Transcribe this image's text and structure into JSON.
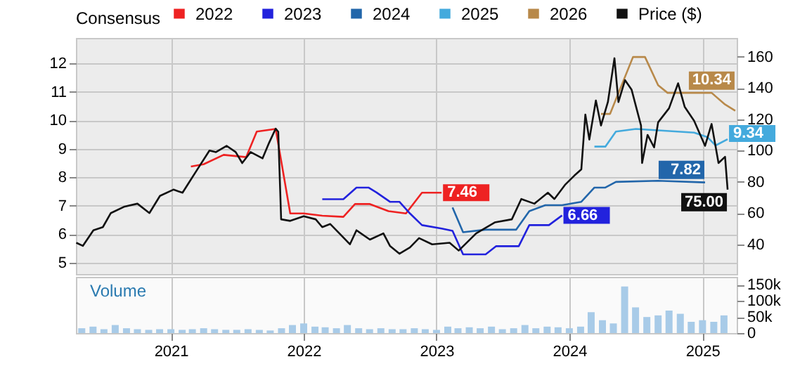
{
  "chart_data": [
    {
      "type": "line",
      "legend_title": "Consensus",
      "legend": "top right",
      "grid": true,
      "tick_labels": "y",
      "xlim": [
        "2020-04-15",
        "2025-04-05"
      ],
      "xticks": [
        "2021",
        "2022",
        "2023",
        "2024",
        "2025"
      ],
      "ylim": [
        4.6,
        12.9
      ],
      "yticks": [
        5,
        6,
        7,
        8,
        9,
        10,
        11,
        12
      ],
      "y2lim": [
        21,
        172
      ],
      "y2ticks": [
        40,
        60,
        80,
        100,
        120,
        140,
        160
      ],
      "series": [
        {
          "name": "2022",
          "color": "#ee2222",
          "x": [
            "2021-02-25",
            "2021-04-01",
            "2021-05-26",
            "2021-07-27",
            "2021-08-25",
            "2021-10-16",
            "2021-11-25",
            "2022-01-01",
            "2022-02-21",
            "2022-04-20",
            "2022-05-22",
            "2022-07-02",
            "2022-08-22",
            "2022-10-09",
            "2022-11-22",
            "2023-01-15"
          ],
          "values": [
            8.38,
            8.46,
            8.79,
            8.71,
            9.61,
            9.7,
            6.73,
            6.73,
            6.65,
            6.61,
            7.06,
            7.06,
            6.81,
            6.73,
            7.46,
            7.46
          ],
          "value_labels": [
            null,
            null,
            null,
            null,
            null,
            null,
            null,
            null,
            null,
            null,
            null,
            null,
            null,
            null,
            null,
            "7.46"
          ]
        },
        {
          "name": "2023",
          "color": "#2222dd",
          "x": [
            "2022-02-21",
            "2022-04-20",
            "2022-05-26",
            "2022-06-28",
            "2022-07-20",
            "2022-08-26",
            "2022-09-21",
            "2022-10-20",
            "2022-11-22",
            "2023-01-15",
            "2023-02-14",
            "2023-03-15",
            "2023-05-16",
            "2023-06-14",
            "2023-08-15",
            "2023-09-13",
            "2023-11-06",
            "2023-12-12"
          ],
          "values": [
            7.23,
            7.23,
            7.64,
            7.64,
            7.47,
            7.14,
            7.14,
            6.73,
            6.32,
            6.2,
            6.12,
            5.29,
            5.29,
            5.58,
            5.58,
            6.32,
            6.32,
            6.66
          ],
          "value_labels": [
            null,
            null,
            null,
            null,
            null,
            null,
            null,
            null,
            null,
            null,
            null,
            null,
            null,
            null,
            null,
            null,
            null,
            "6.66"
          ]
        },
        {
          "name": "2024",
          "color": "#2266aa",
          "x": [
            "2023-02-14",
            "2023-03-15",
            "2023-05-16",
            "2023-08-08",
            "2023-09-13",
            "2023-10-27",
            "2023-12-12",
            "2024-02-03",
            "2024-03-10",
            "2024-04-09",
            "2024-05-08",
            "2024-09-01",
            "2025-01-08"
          ],
          "values": [
            6.94,
            6.07,
            6.16,
            6.16,
            6.81,
            7.02,
            7.02,
            7.14,
            7.64,
            7.64,
            7.84,
            7.88,
            7.82
          ],
          "value_labels": [
            null,
            null,
            null,
            null,
            null,
            null,
            null,
            null,
            null,
            null,
            null,
            null,
            "7.82"
          ]
        },
        {
          "name": "2025",
          "color": "#44aadd",
          "x": [
            "2024-03-10",
            "2024-04-09",
            "2024-05-08",
            "2024-07-02",
            "2024-12-09",
            "2025-01-15",
            "2025-02-06",
            "2025-03-11"
          ],
          "values": [
            9.08,
            9.08,
            9.61,
            9.7,
            9.57,
            9.41,
            9.12,
            9.34
          ],
          "value_labels": [
            null,
            null,
            null,
            null,
            null,
            null,
            null,
            "9.34"
          ]
        },
        {
          "name": "2026",
          "color": "#b8894a",
          "x": [
            "2024-03-28",
            "2024-04-22",
            "2024-06-24",
            "2024-07-27",
            "2024-09-01",
            "2024-09-27",
            "2025-01-26",
            "2025-03-04",
            "2025-04-01"
          ],
          "values": [
            10.23,
            10.23,
            12.23,
            12.23,
            11.24,
            10.97,
            10.97,
            10.56,
            10.34
          ],
          "value_labels": [
            null,
            null,
            null,
            null,
            null,
            null,
            null,
            null,
            "10.34"
          ]
        },
        {
          "name": "Price ($)",
          "color": "#111111",
          "axis": "y2",
          "x": [
            "2020-04-16",
            "2020-05-04",
            "2020-06-02",
            "2020-06-28",
            "2020-07-20",
            "2020-08-25",
            "2020-10-01",
            "2020-11-03",
            "2020-12-02",
            "2021-01-08",
            "2021-02-02",
            "2021-02-21",
            "2021-03-15",
            "2021-04-17",
            "2021-05-05",
            "2021-06-03",
            "2021-06-28",
            "2021-07-16",
            "2021-08-08",
            "2021-09-10",
            "2021-09-28",
            "2021-10-16",
            "2021-10-23",
            "2021-10-31",
            "2021-11-25",
            "2022-01-01",
            "2022-02-03",
            "2022-02-21",
            "2022-03-15",
            "2022-04-09",
            "2022-05-08",
            "2022-05-26",
            "2022-07-02",
            "2022-08-08",
            "2022-08-26",
            "2022-09-21",
            "2022-10-20",
            "2022-11-14",
            "2022-12-20",
            "2023-02-06",
            "2023-03-03",
            "2023-04-20",
            "2023-06-10",
            "2023-07-27",
            "2023-08-22",
            "2023-09-27",
            "2023-11-03",
            "2023-11-21",
            "2023-12-20",
            "2024-01-15",
            "2024-02-03",
            "2024-02-14",
            "2024-02-25",
            "2024-03-14",
            "2024-03-28",
            "2024-04-16",
            "2024-05-04",
            "2024-05-15",
            "2024-06-02",
            "2024-06-20",
            "2024-07-16",
            "2024-07-19",
            "2024-08-03",
            "2024-08-21",
            "2024-09-01",
            "2024-10-01",
            "2024-10-26",
            "2024-11-13",
            "2024-12-09",
            "2025-01-08",
            "2025-01-26",
            "2025-02-14",
            "2025-03-04",
            "2025-03-11"
          ],
          "values": [
            41,
            39,
            49,
            51,
            60,
            64,
            66,
            60,
            71,
            75,
            73,
            80,
            88,
            100,
            99,
            103,
            99,
            92,
            99,
            95,
            105,
            114,
            112,
            56,
            55,
            58,
            56,
            51,
            53,
            47,
            40,
            49,
            43,
            47,
            39,
            34,
            38,
            44,
            40,
            41,
            36,
            47,
            54,
            56,
            69,
            66,
            73,
            69,
            78,
            84,
            88,
            123,
            107,
            132,
            116,
            131,
            159,
            131,
            145,
            139,
            116,
            92,
            110,
            102,
            118,
            127,
            143,
            128,
            119,
            103,
            117,
            92,
            96,
            75
          ],
          "value_labels": [
            null,
            null,
            null,
            null,
            null,
            null,
            null,
            null,
            null,
            null,
            null,
            null,
            null,
            null,
            null,
            null,
            null,
            null,
            null,
            null,
            null,
            null,
            null,
            null,
            null,
            null,
            null,
            null,
            null,
            null,
            null,
            null,
            null,
            null,
            null,
            null,
            null,
            null,
            null,
            null,
            null,
            null,
            null,
            null,
            null,
            null,
            null,
            null,
            null,
            null,
            null,
            null,
            null,
            null,
            null,
            null,
            null,
            null,
            null,
            null,
            null,
            null,
            null,
            null,
            null,
            null,
            null,
            null,
            null,
            null,
            null,
            null,
            null,
            "75.00"
          ]
        }
      ]
    },
    {
      "type": "bar",
      "title": "Volume",
      "color": "#a8cbe8",
      "grid": "x",
      "xlim": [
        "2020-04-15",
        "2025-04-05"
      ],
      "xticks": [
        "2021",
        "2022",
        "2023",
        "2024",
        "2025"
      ],
      "ylim": [
        0,
        175000
      ],
      "yticks": [
        0,
        {
          "value": 50000,
          "label": "50k"
        },
        {
          "value": 100000,
          "label": "100k"
        },
        {
          "value": 150000,
          "label": "150k"
        }
      ],
      "x": [
        "2020-05",
        "2020-06",
        "2020-07",
        "2020-08",
        "2020-09",
        "2020-10",
        "2020-11",
        "2020-12",
        "2021-01",
        "2021-02",
        "2021-03",
        "2021-04",
        "2021-05",
        "2021-06",
        "2021-07",
        "2021-08",
        "2021-09",
        "2021-10",
        "2021-11",
        "2021-12",
        "2022-01",
        "2022-02",
        "2022-03",
        "2022-04",
        "2022-05",
        "2022-06",
        "2022-07",
        "2022-08",
        "2022-09",
        "2022-10",
        "2022-11",
        "2022-12",
        "2023-01",
        "2023-02",
        "2023-03",
        "2023-04",
        "2023-05",
        "2023-06",
        "2023-07",
        "2023-08",
        "2023-09",
        "2023-10",
        "2023-11",
        "2023-12",
        "2024-01",
        "2024-02",
        "2024-03",
        "2024-04",
        "2024-05",
        "2024-06",
        "2024-07",
        "2024-08",
        "2024-09",
        "2024-10",
        "2024-11",
        "2024-12",
        "2025-01",
        "2025-02",
        "2025-03"
      ],
      "values": [
        15000,
        20000,
        12000,
        25000,
        15000,
        12000,
        10000,
        12000,
        12000,
        10000,
        12000,
        15000,
        12000,
        10000,
        10000,
        12000,
        10000,
        8000,
        15000,
        25000,
        30000,
        20000,
        18000,
        15000,
        25000,
        15000,
        12000,
        15000,
        12000,
        12000,
        15000,
        12000,
        10000,
        20000,
        15000,
        18000,
        15000,
        20000,
        12000,
        15000,
        25000,
        15000,
        20000,
        18000,
        15000,
        20000,
        65000,
        40000,
        30000,
        145000,
        80000,
        50000,
        55000,
        70000,
        60000,
        35000,
        40000,
        35000,
        55000
      ]
    }
  ]
}
